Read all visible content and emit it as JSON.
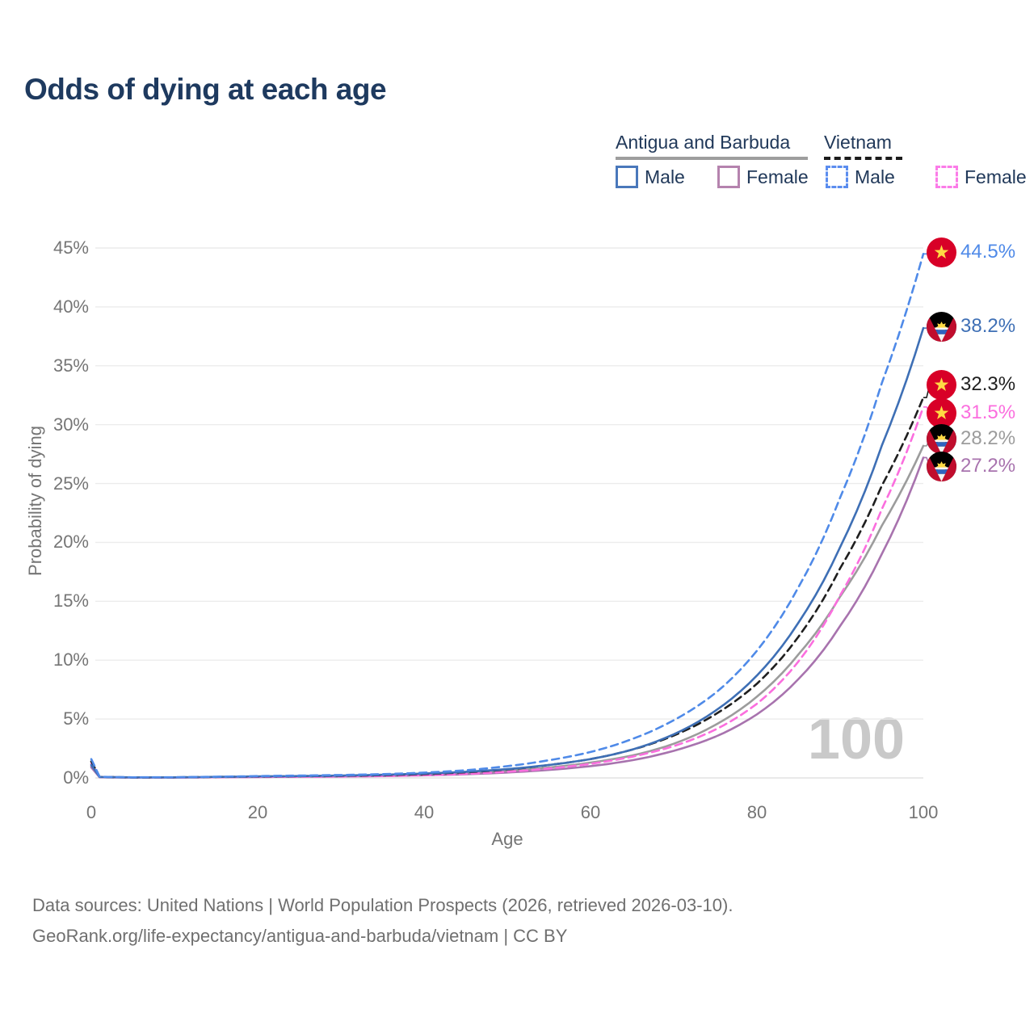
{
  "header": {
    "title": "Odds of dying at each age"
  },
  "legend": {
    "antigua": {
      "label": "Antigua and Barbuda",
      "line_style": "solid",
      "underline_color": "#9e9e9e",
      "male_label": "Male",
      "male_color": "#4a78bb",
      "female_label": "Female",
      "female_color": "#b583ae"
    },
    "vietnam": {
      "label": "Vietnam",
      "line_style": "dashed",
      "underline_color": "#1c1c1c",
      "male_label": "Male",
      "male_color": "#5b8def",
      "female_label": "Female",
      "female_color": "#fb7ce8"
    }
  },
  "chart_data": {
    "type": "line",
    "title": "Odds of dying at each age",
    "xlabel": "Age",
    "ylabel": "Probability of dying",
    "xlim": [
      0,
      100
    ],
    "ylim_pct": [
      0,
      45
    ],
    "x_ticks": [
      0,
      20,
      40,
      60,
      80,
      100
    ],
    "y_ticks": [
      "0%",
      "5%",
      "10%",
      "15%",
      "20%",
      "25%",
      "30%",
      "35%",
      "40%",
      "45%"
    ],
    "grid": "horizontal",
    "legend_position": "top-right",
    "watermark": "100",
    "x": [
      0,
      1,
      5,
      10,
      15,
      20,
      25,
      30,
      35,
      40,
      45,
      50,
      55,
      60,
      65,
      70,
      75,
      80,
      85,
      90,
      95,
      100
    ],
    "series": [
      {
        "id": "vietnam-male",
        "name": "Vietnam — Male",
        "country": "Vietnam",
        "sex": "Male",
        "line_style": "dashed",
        "color": "#4f8ae8",
        "end_label": "44.5%",
        "values": [
          1.6,
          0.1,
          0.05,
          0.06,
          0.1,
          0.16,
          0.2,
          0.25,
          0.32,
          0.45,
          0.65,
          1.0,
          1.5,
          2.2,
          3.3,
          4.9,
          7.2,
          10.8,
          16.2,
          23.8,
          33.5,
          44.5
        ]
      },
      {
        "id": "antigua-male",
        "name": "Antigua and Barbuda — Male",
        "country": "Antigua and Barbuda",
        "sex": "Male",
        "line_style": "solid",
        "color": "#3e6fb5",
        "end_label": "38.2%",
        "values": [
          1.1,
          0.08,
          0.05,
          0.05,
          0.09,
          0.13,
          0.16,
          0.2,
          0.27,
          0.37,
          0.52,
          0.75,
          1.1,
          1.6,
          2.4,
          3.7,
          5.7,
          8.7,
          13.2,
          19.6,
          28.2,
          38.2
        ]
      },
      {
        "id": "vietnam-both",
        "name": "Vietnam — Both sexes",
        "country": "Vietnam",
        "sex": "Both",
        "line_style": "dashed",
        "color": "#1f1f1f",
        "end_label": "32.3%",
        "values": [
          1.4,
          0.09,
          0.04,
          0.05,
          0.08,
          0.12,
          0.15,
          0.18,
          0.24,
          0.33,
          0.48,
          0.72,
          1.1,
          1.6,
          2.4,
          3.6,
          5.4,
          8.0,
          12.0,
          17.8,
          24.8,
          32.3
        ]
      },
      {
        "id": "vietnam-female",
        "name": "Vietnam — Female",
        "country": "Vietnam",
        "sex": "Female",
        "line_style": "dashed",
        "color": "#fb6ede",
        "end_label": "31.5%",
        "values": [
          1.2,
          0.08,
          0.04,
          0.04,
          0.06,
          0.08,
          0.1,
          0.12,
          0.16,
          0.23,
          0.34,
          0.52,
          0.8,
          1.2,
          1.8,
          2.7,
          4.1,
          6.3,
          9.9,
          15.5,
          22.8,
          31.5
        ]
      },
      {
        "id": "antigua-both",
        "name": "Antigua and Barbuda — Both sexes",
        "country": "Antigua and Barbuda",
        "sex": "Both",
        "line_style": "solid",
        "color": "#9c9c9c",
        "end_label": "28.2%",
        "values": [
          1.0,
          0.07,
          0.04,
          0.04,
          0.07,
          0.1,
          0.13,
          0.16,
          0.21,
          0.29,
          0.41,
          0.6,
          0.88,
          1.3,
          1.9,
          2.9,
          4.5,
          6.9,
          10.5,
          15.4,
          21.4,
          28.2
        ]
      },
      {
        "id": "antigua-female",
        "name": "Antigua and Barbuda — Female",
        "country": "Antigua and Barbuda",
        "sex": "Female",
        "line_style": "solid",
        "color": "#a873ae",
        "end_label": "27.2%",
        "values": [
          0.9,
          0.06,
          0.03,
          0.04,
          0.06,
          0.08,
          0.1,
          0.12,
          0.16,
          0.22,
          0.31,
          0.46,
          0.68,
          1.0,
          1.5,
          2.3,
          3.5,
          5.4,
          8.4,
          12.9,
          19.0,
          27.2
        ]
      }
    ]
  },
  "icons": {
    "flags": [
      "vietnam-flag-icon",
      "antigua-and-barbuda-flag-icon"
    ]
  },
  "footer": {
    "line1": "Data sources: United Nations | World Population Prospects (2026, retrieved 2026-03-10).",
    "line2": "GeoRank.org/life-expectancy/antigua-and-barbuda/vietnam | CC BY"
  }
}
